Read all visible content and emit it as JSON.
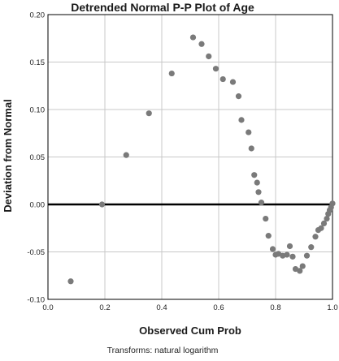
{
  "chart_data": {
    "type": "scatter",
    "title": "Detrended Normal P-P Plot of Age",
    "xlabel": "Observed Cum Prob",
    "ylabel": "Deviation from Normal",
    "footnote": "Transforms: natural logarithm",
    "xlim": [
      0.0,
      1.0
    ],
    "ylim": [
      -0.1,
      0.2
    ],
    "xticks": [
      "0.0",
      "0.2",
      "0.4",
      "0.6",
      "0.8",
      "1.0"
    ],
    "yticks": [
      "-0.10",
      "-0.05",
      "0.00",
      "0.05",
      "0.10",
      "0.15",
      "0.20"
    ],
    "grid": true,
    "reference_line_y": 0.0,
    "colors": {
      "points": "#7a7a7a",
      "reference_line": "#000000",
      "grid": "#c8c8c8",
      "axis": "#000000"
    },
    "x": [
      0.08,
      0.19,
      0.275,
      0.355,
      0.435,
      0.51,
      0.54,
      0.565,
      0.59,
      0.615,
      0.65,
      0.67,
      0.68,
      0.705,
      0.715,
      0.725,
      0.735,
      0.74,
      0.75,
      0.765,
      0.775,
      0.79,
      0.8,
      0.81,
      0.825,
      0.84,
      0.85,
      0.86,
      0.87,
      0.885,
      0.895,
      0.91,
      0.925,
      0.94,
      0.95,
      0.96,
      0.97,
      0.98,
      0.985,
      0.99,
      0.995,
      1.0
    ],
    "y": [
      -0.081,
      0.0,
      0.052,
      0.096,
      0.138,
      0.176,
      0.169,
      0.156,
      0.143,
      0.132,
      0.129,
      0.114,
      0.089,
      0.076,
      0.059,
      0.031,
      0.023,
      0.013,
      0.002,
      -0.015,
      -0.033,
      -0.047,
      -0.053,
      -0.052,
      -0.054,
      -0.053,
      -0.044,
      -0.055,
      -0.068,
      -0.07,
      -0.065,
      -0.054,
      -0.045,
      -0.034,
      -0.027,
      -0.025,
      -0.02,
      -0.015,
      -0.01,
      -0.006,
      -0.003,
      0.001
    ]
  }
}
